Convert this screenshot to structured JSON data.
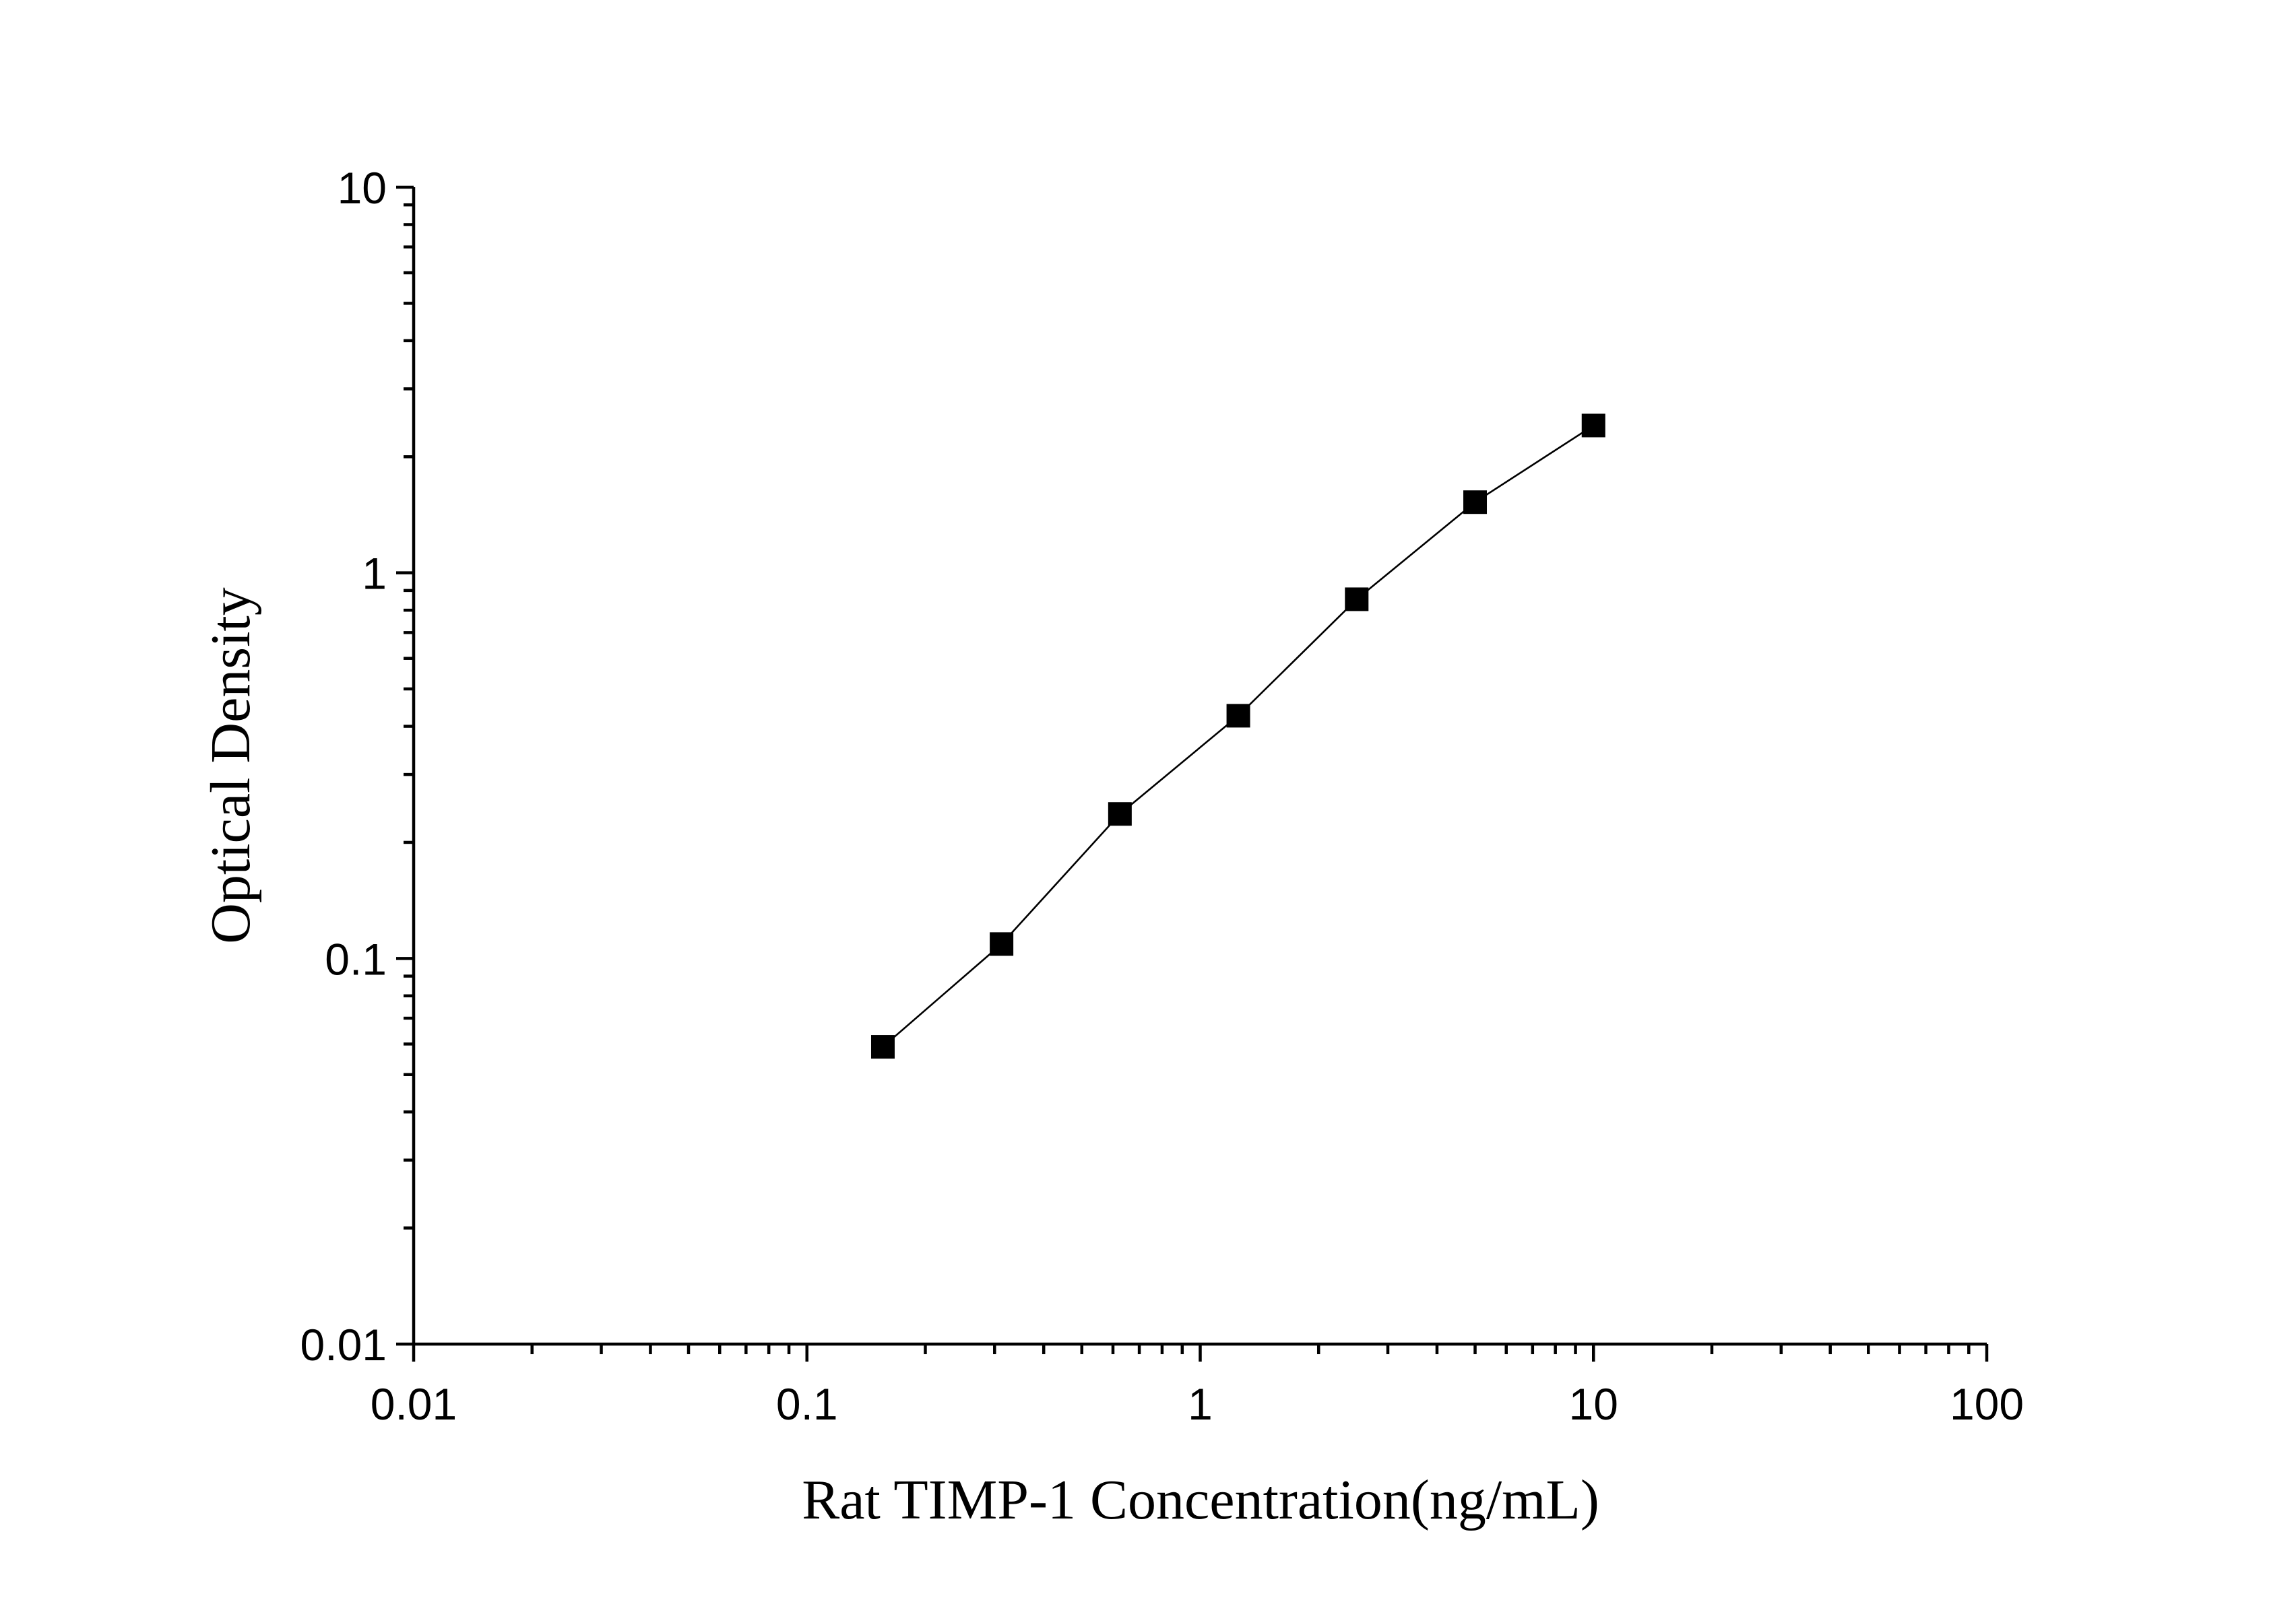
{
  "chart_data": {
    "type": "line",
    "x_label": "Rat TIMP-1 Concentration(ng/mL)",
    "y_label": "Optical Density",
    "x": [
      0.156,
      0.3125,
      0.625,
      1.25,
      2.5,
      5,
      10
    ],
    "series": [
      {
        "color": "#000000",
        "values": [
          0.059,
          0.109,
          0.237,
          0.426,
          0.854,
          1.525,
          2.41
        ]
      }
    ],
    "x_log": true,
    "y_log": true,
    "xlim": [
      0.01,
      100
    ],
    "ylim": [
      0.01,
      10
    ],
    "xticks": [
      0.01,
      0.1,
      1,
      10,
      100
    ],
    "yticks": [
      0.01,
      0.1,
      1,
      10
    ],
    "minor_ticks": true,
    "markers": "square"
  }
}
